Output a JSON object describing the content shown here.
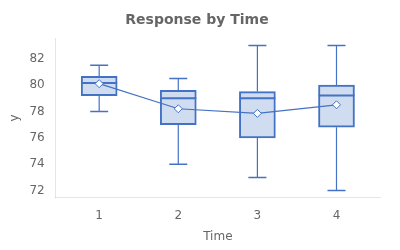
{
  "chart_data": {
    "type": "box",
    "title": "Response by Time",
    "xlabel": "Time",
    "ylabel": "y",
    "x": [
      1,
      2,
      3,
      4
    ],
    "q1": [
      79.2,
      77.0,
      76.0,
      76.8
    ],
    "median": [
      80.15,
      79.0,
      79.0,
      79.2
    ],
    "q3": [
      80.65,
      79.6,
      79.5,
      80.0
    ],
    "whisker_low": [
      78.0,
      74.0,
      73.0,
      72.0
    ],
    "whisker_high": [
      81.5,
      80.5,
      83.0,
      83.0
    ],
    "mean": [
      80.1,
      78.2,
      77.85,
      78.5
    ],
    "xlim": [
      0.45,
      4.55
    ],
    "ylim": [
      71.5,
      83.5
    ],
    "xticks": [
      1,
      2,
      3,
      4
    ],
    "yticks": [
      72,
      74,
      76,
      78,
      80,
      82
    ],
    "color": "#4472c4",
    "grid": false
  }
}
